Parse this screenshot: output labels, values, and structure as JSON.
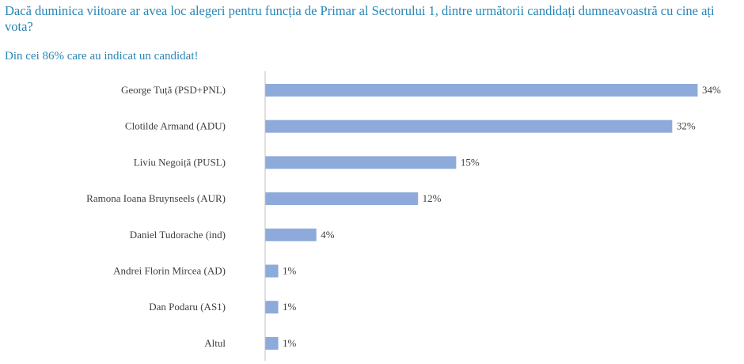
{
  "header": {
    "title": "Dacă duminica viitoare ar avea loc alegeri pentru funcția de Primar al Sectorului 1, dintre următorii candidați dumneavoastră cu cine ați vota?",
    "subtitle": "Din cei 86% care au indicat un candidat!"
  },
  "chart_data": {
    "type": "bar",
    "orientation": "horizontal",
    "categories": [
      "George Tuță (PSD+PNL)",
      "Clotilde Armand (ADU)",
      "Liviu Negoiță (PUSL)",
      "Ramona Ioana Bruynseels (AUR)",
      "Daniel Tudorache (ind)",
      "Andrei Florin Mircea (AD)",
      "Dan Podaru (AS1)",
      "Altul"
    ],
    "values": [
      34,
      32,
      15,
      12,
      4,
      1,
      1,
      1
    ],
    "value_labels": [
      "34%",
      "32%",
      "15%",
      "12%",
      "4%",
      "1%",
      "1%",
      "1%"
    ],
    "unit": "%",
    "xlim": [
      0,
      35
    ],
    "grid": false,
    "legend": "none",
    "colors": {
      "bar": "#8eaadb",
      "axis": "#bfbfbf",
      "title": "#2a86b5",
      "label": "#404040"
    }
  }
}
